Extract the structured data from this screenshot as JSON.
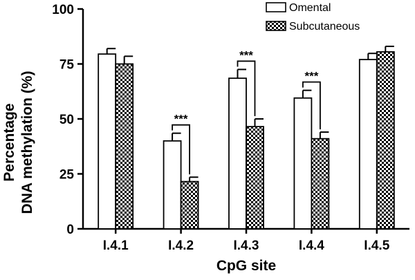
{
  "chart_data": {
    "type": "bar",
    "title": "",
    "xlabel": "CpG site",
    "ylabel_lines": [
      "Percentage",
      "DNA methylation (%)"
    ],
    "categories": [
      "I.4.1",
      "I.4.2",
      "I.4.3",
      "I.4.4",
      "I.4.5"
    ],
    "ylim": [
      0,
      100
    ],
    "yticks": [
      0,
      25,
      50,
      75,
      100
    ],
    "grid": false,
    "legend_position": "top-right",
    "series": [
      {
        "name": "Omental",
        "values": [
          79.5,
          40,
          68.5,
          59.5,
          77
        ],
        "errors": [
          2.5,
          3.5,
          4,
          3.5,
          2.8
        ],
        "fill": "white"
      },
      {
        "name": "Subcutaneous",
        "values": [
          75,
          21.5,
          46.5,
          41,
          80.5
        ],
        "errors": [
          3.5,
          2,
          3.5,
          3,
          2.5
        ],
        "fill": "checkered"
      }
    ],
    "significance": [
      {
        "category": "I.4.2",
        "label": "***"
      },
      {
        "category": "I.4.3",
        "label": "***"
      },
      {
        "category": "I.4.4",
        "label": "***"
      }
    ]
  }
}
